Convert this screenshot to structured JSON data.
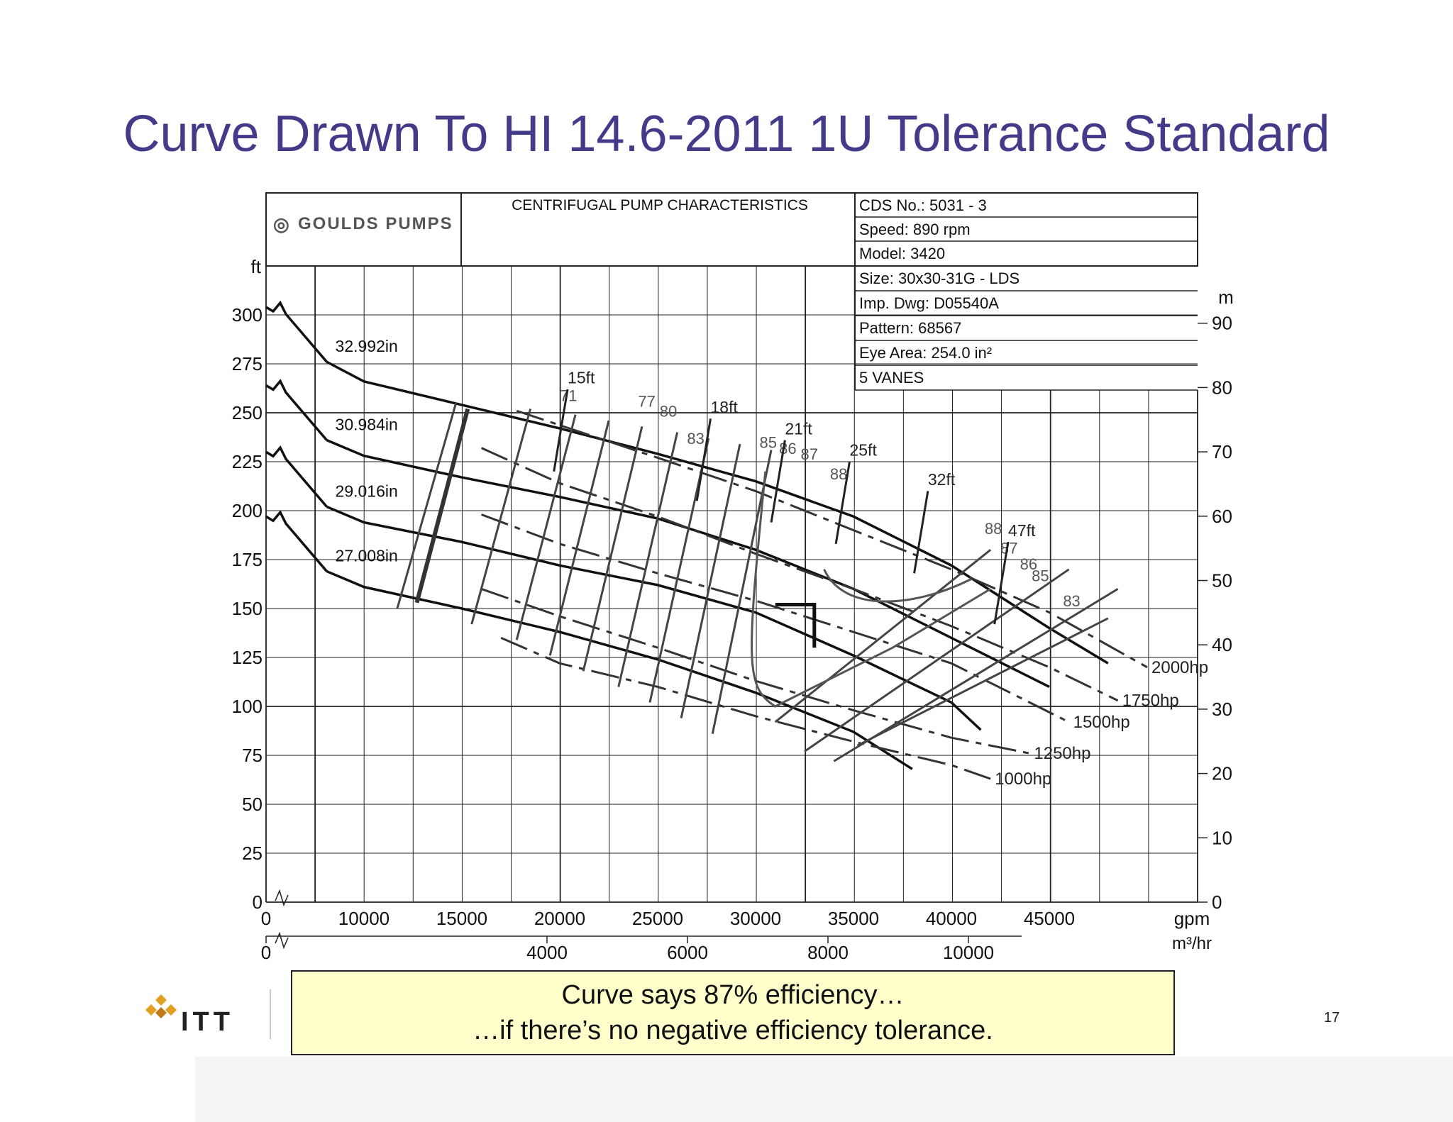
{
  "slide": {
    "title": "Curve Drawn To HI 14.6-2011 1U Tolerance Standard",
    "page_number": "17",
    "callout_line1": "Curve says 87% efficiency…",
    "callout_line2": "…if there’s no negative efficiency tolerance.",
    "logo_text": "ITT",
    "logo_icon": "itt-logo-icon"
  },
  "datasheet": {
    "brand": "GOULDS PUMPS",
    "heading": "CENTRIFUGAL PUMP CHARACTERISTICS",
    "rows": [
      "CDS No.: 5031 - 3",
      "Speed: 890 rpm",
      "Model: 3420",
      "Size: 30x30-31G - LDS",
      "Imp. Dwg: D05540A",
      "Pattern: 68567",
      "Eye Area: 254.0 in²",
      "5 VANES"
    ]
  },
  "chart_data": {
    "type": "line",
    "title": "CENTRIFUGAL PUMP CHARACTERISTICS",
    "xlabel": "gpm",
    "xlabel2": "m³/hr",
    "ylabel": "ft",
    "ylabel2": "m",
    "xlim": [
      5000,
      52500
    ],
    "ylim": [
      0,
      325
    ],
    "x_ticks": [
      0,
      10000,
      15000,
      20000,
      25000,
      30000,
      35000,
      40000,
      45000
    ],
    "x_tick_labels": [
      "0",
      "10000",
      "15000",
      "20000",
      "25000",
      "30000",
      "35000",
      "40000",
      "45000"
    ],
    "x2_ticks": [
      0,
      4000,
      6000,
      8000,
      10000
    ],
    "y_ticks": [
      0,
      25,
      50,
      75,
      100,
      125,
      150,
      175,
      200,
      225,
      250,
      275,
      300
    ],
    "y2_ticks": [
      0,
      10,
      20,
      30,
      40,
      50,
      60,
      70,
      80,
      90
    ],
    "grid": true,
    "impeller_curves": [
      {
        "name": "32.992in",
        "x": [
          6200,
          10000,
          15000,
          20000,
          25000,
          30000,
          35000,
          40000,
          45000,
          48000
        ],
        "y": [
          276,
          266,
          254,
          242,
          229,
          215,
          197,
          172,
          140,
          122
        ]
      },
      {
        "name": "30.984in",
        "x": [
          6200,
          10000,
          15000,
          20000,
          25000,
          30000,
          35000,
          40000,
          45000
        ],
        "y": [
          236,
          228,
          217,
          207,
          196,
          180,
          160,
          135,
          110
        ]
      },
      {
        "name": "29.016in",
        "x": [
          6200,
          10000,
          15000,
          20000,
          25000,
          30000,
          35000,
          40000,
          41500
        ],
        "y": [
          202,
          194,
          184,
          172,
          162,
          148,
          126,
          102,
          88
        ]
      },
      {
        "name": "27.008in",
        "x": [
          6200,
          10000,
          15000,
          20000,
          25000,
          30000,
          35000,
          38000
        ],
        "y": [
          169,
          161,
          150,
          138,
          124,
          107,
          87,
          68
        ]
      }
    ],
    "power_curves": [
      {
        "name": "2000hp",
        "x": [
          17800,
          25000,
          30000,
          35000,
          40000,
          45000,
          50000
        ],
        "y": [
          251,
          227,
          210,
          190,
          170,
          148,
          120
        ]
      },
      {
        "name": "1750hp",
        "x": [
          16000,
          20000,
          25000,
          30000,
          35000,
          40000,
          45000,
          48500
        ],
        "y": [
          232,
          214,
          197,
          178,
          160,
          141,
          120,
          103
        ]
      },
      {
        "name": "1500hp",
        "x": [
          16000,
          20000,
          25000,
          30000,
          35000,
          40000,
          46000
        ],
        "y": [
          198,
          183,
          168,
          154,
          138,
          122,
          92
        ]
      },
      {
        "name": "1250hp",
        "x": [
          16000,
          20000,
          25000,
          30000,
          35000,
          40000,
          44000
        ],
        "y": [
          160,
          146,
          130,
          113,
          98,
          84,
          76
        ]
      },
      {
        "name": "1000hp",
        "x": [
          17000,
          20000,
          25000,
          30000,
          35000,
          40000,
          42000
        ],
        "y": [
          135,
          122,
          110,
          95,
          82,
          70,
          63
        ]
      }
    ],
    "efficiency_labels": [
      "71",
      "77",
      "80",
      "83",
      "85",
      "86",
      "87",
      "88",
      "88",
      "87",
      "86",
      "85",
      "83"
    ],
    "npsh_labels": [
      "15ft",
      "18ft",
      "21ft",
      "25ft",
      "32ft",
      "47ft"
    ],
    "rated_point": {
      "x": 33000,
      "y": 132
    }
  }
}
